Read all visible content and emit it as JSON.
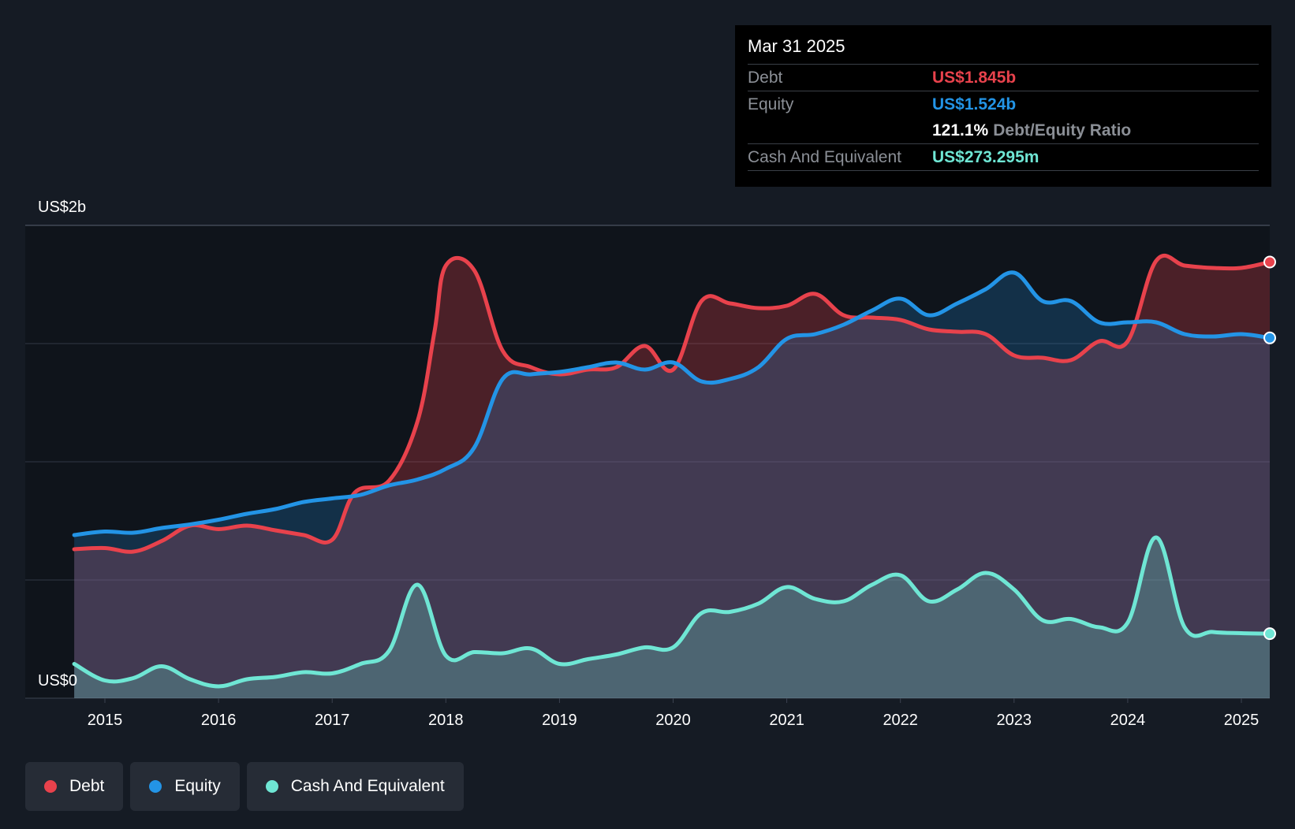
{
  "tooltip": {
    "date": "Mar 31 2025",
    "debt_label": "Debt",
    "debt_value": "US$1.845b",
    "equity_label": "Equity",
    "equity_value": "US$1.524b",
    "ratio_value": "121.1%",
    "ratio_label": "Debt/Equity Ratio",
    "cash_label": "Cash And Equivalent",
    "cash_value": "US$273.295m"
  },
  "legend": {
    "debt": "Debt",
    "equity": "Equity",
    "cash": "Cash And Equivalent"
  },
  "colors": {
    "debt": "#e8424c",
    "equity": "#2394e6",
    "cash": "#6fe6d4",
    "background": "#151b24"
  },
  "chart_data": {
    "type": "area",
    "ylim": [
      0,
      2.0
    ],
    "y_unit": "US$ billions",
    "y_tick_labels": {
      "top": "US$2b",
      "bottom": "US$0"
    },
    "grid": true,
    "x_tick_labels": [
      "2015",
      "2016",
      "2017",
      "2018",
      "2019",
      "2020",
      "2021",
      "2022",
      "2023",
      "2024",
      "2025"
    ],
    "x_range": [
      2014.73,
      2025.25
    ],
    "series": [
      {
        "name": "Debt",
        "x": [
          2014.73,
          2015.0,
          2015.25,
          2015.5,
          2015.75,
          2016.0,
          2016.25,
          2016.5,
          2016.75,
          2017.0,
          2017.2,
          2017.5,
          2017.75,
          2017.9,
          2018.0,
          2018.25,
          2018.5,
          2018.75,
          2019.0,
          2019.25,
          2019.5,
          2019.75,
          2020.0,
          2020.25,
          2020.5,
          2020.75,
          2021.0,
          2021.25,
          2021.5,
          2021.75,
          2022.0,
          2022.25,
          2022.5,
          2022.75,
          2023.0,
          2023.25,
          2023.5,
          2023.75,
          2024.0,
          2024.25,
          2024.5,
          2024.75,
          2025.0,
          2025.25
        ],
        "values": [
          0.63,
          0.635,
          0.62,
          0.665,
          0.73,
          0.715,
          0.73,
          0.71,
          0.69,
          0.67,
          0.87,
          0.92,
          1.17,
          1.55,
          1.83,
          1.81,
          1.47,
          1.4,
          1.37,
          1.39,
          1.4,
          1.49,
          1.39,
          1.68,
          1.67,
          1.65,
          1.66,
          1.71,
          1.62,
          1.61,
          1.6,
          1.56,
          1.55,
          1.54,
          1.45,
          1.44,
          1.43,
          1.51,
          1.51,
          1.85,
          1.83,
          1.82,
          1.82,
          1.845
        ]
      },
      {
        "name": "Equity",
        "x": [
          2014.73,
          2015.0,
          2015.25,
          2015.5,
          2015.75,
          2016.0,
          2016.25,
          2016.5,
          2016.75,
          2017.0,
          2017.25,
          2017.5,
          2017.75,
          2018.0,
          2018.25,
          2018.5,
          2018.75,
          2019.0,
          2019.25,
          2019.5,
          2019.75,
          2020.0,
          2020.25,
          2020.5,
          2020.75,
          2021.0,
          2021.25,
          2021.5,
          2021.75,
          2022.0,
          2022.25,
          2022.5,
          2022.75,
          2023.0,
          2023.25,
          2023.5,
          2023.75,
          2024.0,
          2024.25,
          2024.5,
          2024.75,
          2025.0,
          2025.25
        ],
        "values": [
          0.69,
          0.705,
          0.7,
          0.72,
          0.735,
          0.755,
          0.78,
          0.8,
          0.83,
          0.845,
          0.86,
          0.9,
          0.925,
          0.97,
          1.06,
          1.35,
          1.37,
          1.38,
          1.4,
          1.42,
          1.39,
          1.42,
          1.34,
          1.35,
          1.4,
          1.52,
          1.54,
          1.58,
          1.64,
          1.69,
          1.62,
          1.67,
          1.73,
          1.8,
          1.68,
          1.68,
          1.59,
          1.59,
          1.59,
          1.54,
          1.53,
          1.54,
          1.524
        ]
      },
      {
        "name": "Cash And Equivalent",
        "x": [
          2014.73,
          2015.0,
          2015.25,
          2015.5,
          2015.75,
          2016.0,
          2016.25,
          2016.5,
          2016.75,
          2017.0,
          2017.25,
          2017.5,
          2017.75,
          2018.0,
          2018.25,
          2018.5,
          2018.75,
          2019.0,
          2019.25,
          2019.5,
          2019.75,
          2020.0,
          2020.25,
          2020.5,
          2020.75,
          2021.0,
          2021.25,
          2021.5,
          2021.75,
          2022.0,
          2022.25,
          2022.5,
          2022.75,
          2023.0,
          2023.25,
          2023.5,
          2023.75,
          2024.0,
          2024.25,
          2024.5,
          2024.75,
          2025.0,
          2025.25
        ],
        "values": [
          0.145,
          0.075,
          0.085,
          0.135,
          0.08,
          0.05,
          0.08,
          0.09,
          0.11,
          0.105,
          0.145,
          0.2,
          0.48,
          0.18,
          0.195,
          0.19,
          0.21,
          0.145,
          0.165,
          0.185,
          0.215,
          0.215,
          0.36,
          0.365,
          0.4,
          0.47,
          0.42,
          0.41,
          0.48,
          0.52,
          0.41,
          0.46,
          0.53,
          0.46,
          0.33,
          0.335,
          0.3,
          0.32,
          0.68,
          0.3,
          0.28,
          0.275,
          0.273
        ]
      }
    ]
  }
}
